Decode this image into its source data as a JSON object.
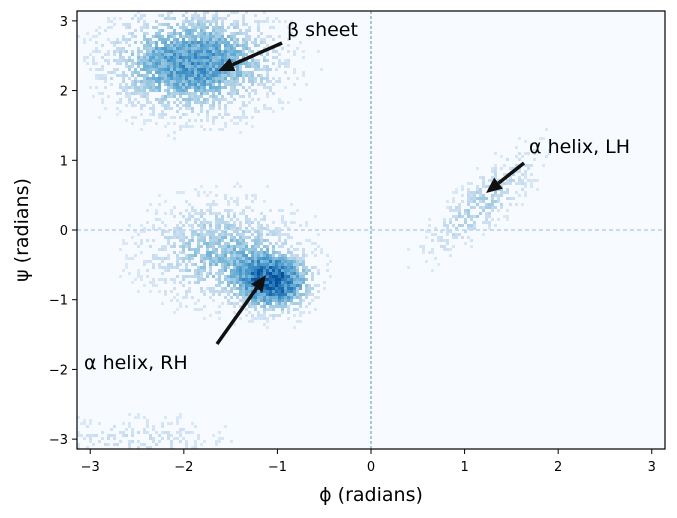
{
  "chart_data": {
    "type": "heatmap",
    "title": "",
    "xlabel": "ϕ (radians)",
    "ylabel": "ψ (radians)",
    "xlim": [
      -3.14159,
      3.14159
    ],
    "ylim": [
      -3.14159,
      3.14159
    ],
    "xticks": [
      -3,
      -2,
      -1,
      0,
      1,
      2,
      3
    ],
    "yticks": [
      -3,
      -2,
      -1,
      0,
      1,
      2,
      3
    ],
    "xtick_labels": [
      "−3",
      "−2",
      "−1",
      "0",
      "1",
      "2",
      "3"
    ],
    "ytick_labels": [
      "−3",
      "−2",
      "−1",
      "0",
      "1",
      "2",
      "3"
    ],
    "grid": false,
    "colormap": "Blues",
    "background_color": "#f7fbff",
    "description": "2D histogram (Ramachandran plot) of backbone dihedral angles phi vs psi",
    "clusters": [
      {
        "name": "beta sheet",
        "center": [
          -1.9,
          2.4
        ],
        "spread": [
          0.55,
          0.45
        ],
        "density": 0.75
      },
      {
        "name": "alpha helix, RH",
        "center": [
          -1.05,
          -0.75
        ],
        "spread": [
          0.25,
          0.25
        ],
        "density": 1.0
      },
      {
        "name": "alpha helix, RH diffuse",
        "center": [
          -1.6,
          -0.3
        ],
        "spread": [
          0.5,
          0.45
        ],
        "density": 0.45
      },
      {
        "name": "alpha helix, LH",
        "center": [
          1.2,
          0.4
        ],
        "spread": [
          0.25,
          0.55
        ],
        "density": 0.35
      },
      {
        "name": "bottom wrap",
        "center": [
          -2.5,
          -3.0
        ],
        "spread": [
          0.6,
          0.2
        ],
        "density": 0.2
      }
    ],
    "annotations": [
      {
        "text": "β sheet",
        "text_xy": [
          -0.9,
          2.85
        ],
        "arrow_to": [
          -1.65,
          2.25
        ]
      },
      {
        "text": "α helix, LH",
        "text_xy": [
          1.7,
          1.15
        ],
        "arrow_to": [
          1.2,
          0.5
        ]
      },
      {
        "text": "α helix, RH",
        "text_xy": [
          -3.0,
          -1.9
        ],
        "arrow_to": [
          -1.12,
          -0.62
        ]
      }
    ]
  }
}
